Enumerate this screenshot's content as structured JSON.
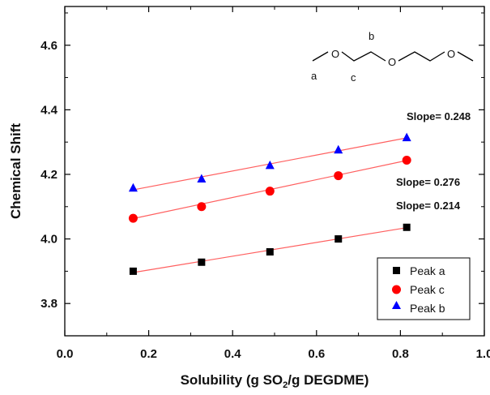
{
  "chart_data": {
    "type": "scatter",
    "xlabel": "Solubility (g SO",
    "xlabel_sub": "2",
    "xlabel_tail": "/g DEGDME)",
    "ylabel": "Chemical Shift",
    "xlim": [
      0.0,
      1.0
    ],
    "ylim": [
      3.7,
      4.72
    ],
    "x_ticks": [
      0.0,
      0.2,
      0.4,
      0.6,
      0.8,
      1.0
    ],
    "x_tick_labels": [
      "0.0",
      "0.2",
      "0.4",
      "0.6",
      "0.8",
      "1.0"
    ],
    "y_ticks": [
      3.8,
      4.0,
      4.2,
      4.4,
      4.6
    ],
    "y_tick_labels": [
      "3.8",
      "4.0",
      "4.2",
      "4.4",
      "4.6"
    ],
    "legend_position": "bottom-right",
    "series": [
      {
        "name": "Peak a",
        "marker": "square",
        "color": "#000000",
        "x": [
          0.163,
          0.326,
          0.489,
          0.652,
          0.815
        ],
        "y": [
          3.9,
          3.928,
          3.96,
          4.0,
          4.036
        ]
      },
      {
        "name": "Peak c",
        "marker": "circle",
        "color": "#ff0000",
        "x": [
          0.163,
          0.326,
          0.489,
          0.652,
          0.815
        ],
        "y": [
          4.064,
          4.1,
          4.148,
          4.196,
          4.244
        ]
      },
      {
        "name": "Peak b",
        "marker": "triangle",
        "color": "#0000ff",
        "x": [
          0.163,
          0.326,
          0.489,
          0.652,
          0.815
        ],
        "y": [
          4.158,
          4.186,
          4.228,
          4.276,
          4.314
        ]
      }
    ],
    "fit_line_color": "#ff6060",
    "fit_lines": [
      {
        "series": "Peak a",
        "x": [
          0.163,
          0.815
        ],
        "y": [
          3.896,
          4.035
        ]
      },
      {
        "series": "Peak c",
        "x": [
          0.163,
          0.815
        ],
        "y": [
          4.063,
          4.243
        ]
      },
      {
        "series": "Peak b",
        "x": [
          0.163,
          0.815
        ],
        "y": [
          4.152,
          4.313
        ]
      }
    ],
    "annotations": {
      "slope_b": "Slope= 0.248",
      "slope_c": "Slope= 0.276",
      "slope_a": "Slope= 0.214"
    },
    "molecule_labels": {
      "a": "a",
      "b": "b",
      "c": "c",
      "atom": "O"
    }
  }
}
